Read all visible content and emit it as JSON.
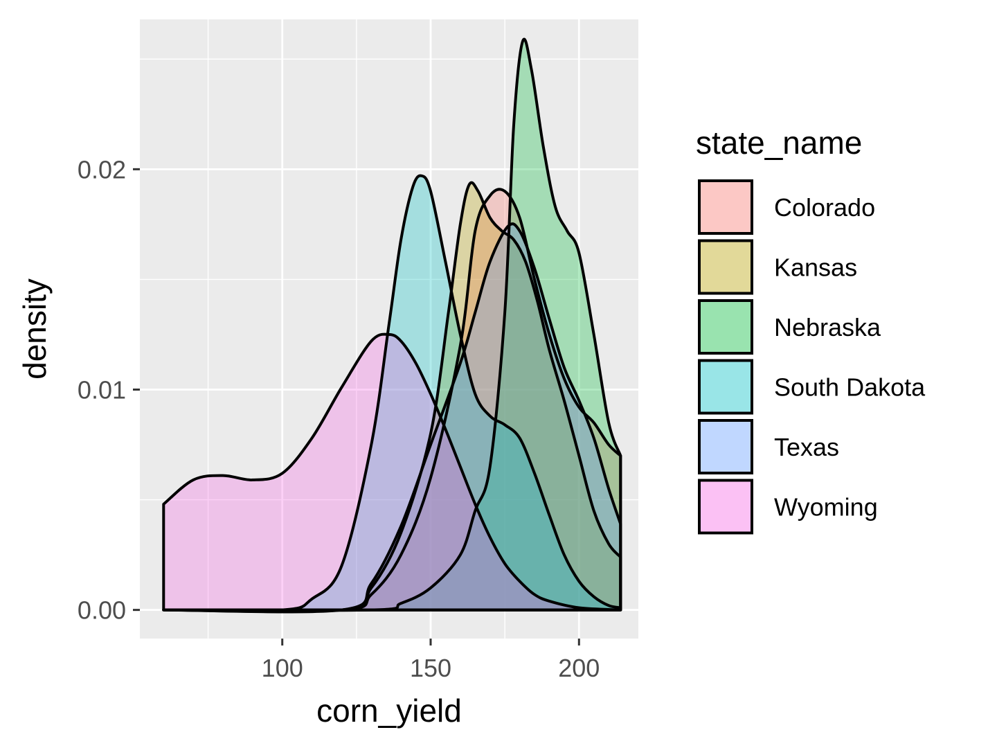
{
  "chart_data": {
    "type": "area",
    "title": "",
    "xlabel": "corn_yield",
    "ylabel": "density",
    "xlim": [
      52,
      220
    ],
    "ylim": [
      -0.0013,
      0.0268
    ],
    "x_ticks": [
      100,
      150,
      200
    ],
    "x_tick_labels": [
      "100",
      "150",
      "200"
    ],
    "y_ticks": [
      0.0,
      0.01,
      0.02
    ],
    "y_tick_labels": [
      "0.00",
      "0.01",
      "0.02"
    ],
    "grid": true,
    "legend": {
      "title": "state_name",
      "position": "right"
    },
    "series": [
      {
        "name": "Colorado",
        "color": "#F8766D",
        "points": [
          [
            60,
            0
          ],
          [
            120,
            0
          ],
          [
            130,
            0.0007
          ],
          [
            140,
            0.0025
          ],
          [
            150,
            0.006
          ],
          [
            160,
            0.012
          ],
          [
            165,
            0.0172
          ],
          [
            170,
            0.0188
          ],
          [
            175,
            0.019
          ],
          [
            180,
            0.0178
          ],
          [
            185,
            0.015
          ],
          [
            190,
            0.0125
          ],
          [
            195,
            0.0105
          ],
          [
            200,
            0.0092
          ],
          [
            205,
            0.0085
          ],
          [
            210,
            0.0075
          ],
          [
            214,
            0.007
          ]
        ]
      },
      {
        "name": "Kansas",
        "color": "#B79F00",
        "points": [
          [
            60,
            0
          ],
          [
            120,
            0
          ],
          [
            130,
            0.001
          ],
          [
            140,
            0.0035
          ],
          [
            150,
            0.008
          ],
          [
            156,
            0.0135
          ],
          [
            160,
            0.0175
          ],
          [
            163,
            0.0193
          ],
          [
            166,
            0.019
          ],
          [
            170,
            0.0178
          ],
          [
            174,
            0.0172
          ],
          [
            178,
            0.0168
          ],
          [
            182,
            0.0158
          ],
          [
            186,
            0.014
          ],
          [
            190,
            0.0118
          ],
          [
            195,
            0.0095
          ],
          [
            200,
            0.007
          ],
          [
            205,
            0.0045
          ],
          [
            210,
            0.003
          ],
          [
            214,
            0.0024
          ]
        ]
      },
      {
        "name": "Nebraska",
        "color": "#00BA38",
        "points": [
          [
            60,
            0
          ],
          [
            130,
            0
          ],
          [
            140,
            0.0003
          ],
          [
            150,
            0.001
          ],
          [
            160,
            0.0025
          ],
          [
            165,
            0.0045
          ],
          [
            170,
            0.0065
          ],
          [
            175,
            0.0135
          ],
          [
            178,
            0.022
          ],
          [
            181,
            0.0258
          ],
          [
            184,
            0.0245
          ],
          [
            188,
            0.021
          ],
          [
            192,
            0.0183
          ],
          [
            196,
            0.0172
          ],
          [
            200,
            0.0162
          ],
          [
            205,
            0.0125
          ],
          [
            210,
            0.0085
          ],
          [
            214,
            0.007
          ]
        ]
      },
      {
        "name": "South Dakota",
        "color": "#00BFC4",
        "points": [
          [
            60,
            0
          ],
          [
            100,
            0
          ],
          [
            110,
            0.0005
          ],
          [
            120,
            0.002
          ],
          [
            130,
            0.0075
          ],
          [
            136,
            0.013
          ],
          [
            140,
            0.0168
          ],
          [
            144,
            0.0192
          ],
          [
            147,
            0.0197
          ],
          [
            150,
            0.019
          ],
          [
            155,
            0.0158
          ],
          [
            160,
            0.0125
          ],
          [
            165,
            0.0098
          ],
          [
            170,
            0.0088
          ],
          [
            175,
            0.0084
          ],
          [
            180,
            0.0078
          ],
          [
            185,
            0.0062
          ],
          [
            190,
            0.0043
          ],
          [
            195,
            0.0025
          ],
          [
            200,
            0.0013
          ],
          [
            205,
            0.0006
          ],
          [
            210,
            0.0002
          ],
          [
            214,
            0.0001
          ]
        ]
      },
      {
        "name": "Texas",
        "color": "#619CFF",
        "points": [
          [
            60,
            0
          ],
          [
            120,
            0
          ],
          [
            130,
            0.0012
          ],
          [
            140,
            0.0038
          ],
          [
            150,
            0.0075
          ],
          [
            160,
            0.0112
          ],
          [
            165,
            0.0135
          ],
          [
            170,
            0.0158
          ],
          [
            176,
            0.0174
          ],
          [
            180,
            0.0172
          ],
          [
            185,
            0.0155
          ],
          [
            190,
            0.0132
          ],
          [
            195,
            0.011
          ],
          [
            200,
            0.0095
          ],
          [
            205,
            0.0078
          ],
          [
            210,
            0.0055
          ],
          [
            214,
            0.0039
          ]
        ]
      },
      {
        "name": "Wyoming",
        "color": "#F564E3",
        "points": [
          [
            60,
            0.0048
          ],
          [
            70,
            0.0059
          ],
          [
            80,
            0.0061
          ],
          [
            90,
            0.0059
          ],
          [
            100,
            0.0062
          ],
          [
            110,
            0.0078
          ],
          [
            120,
            0.0101
          ],
          [
            130,
            0.0122
          ],
          [
            136,
            0.0125
          ],
          [
            140,
            0.0122
          ],
          [
            145,
            0.0112
          ],
          [
            150,
            0.0098
          ],
          [
            155,
            0.0082
          ],
          [
            160,
            0.0065
          ],
          [
            165,
            0.0048
          ],
          [
            170,
            0.0033
          ],
          [
            175,
            0.0021
          ],
          [
            180,
            0.0013
          ],
          [
            185,
            0.0007
          ],
          [
            190,
            0.0004
          ],
          [
            200,
            0.0001
          ],
          [
            214,
            0
          ]
        ]
      }
    ]
  }
}
